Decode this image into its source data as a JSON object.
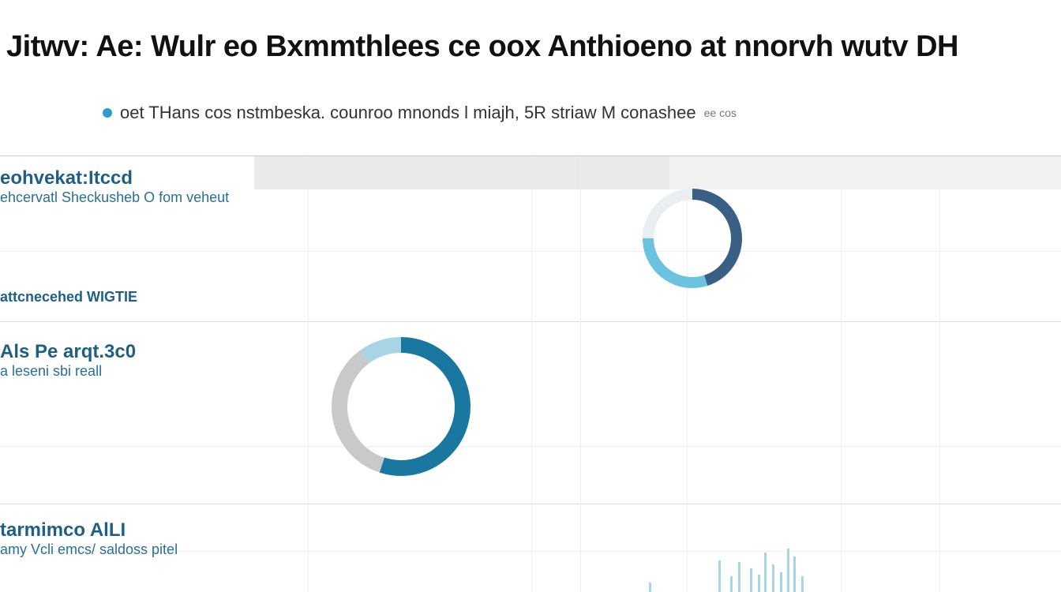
{
  "header": {
    "title": "Jitwv: Ae: Wulr eo Bxmmthlees ce oox Anthioeno at nnorvh wutv DH",
    "subtitle": "oet THans cos nstmbeska. counroo mnonds l miajh, 5R striaw M conashee",
    "subtitle_extra": "ee cos"
  },
  "sections": [
    {
      "title": "eohvekat:Itccd",
      "subtitle": "ehcervatl Sheckusheb O fom veheut",
      "footer": "attcnecehed WIGTIE"
    },
    {
      "title": "Als Pe arqt.3c0",
      "subtitle": "a  leseni sbi reall"
    },
    {
      "title": "tarmimco AlLI",
      "subtitle": "amy Vcli  emcs/ saldoss pitel"
    }
  ],
  "colors": {
    "accent": "#2aa0c8",
    "dark_blue": "#1f5f86",
    "donut_blue": "#1a78a0",
    "grid": "#e5e5e5"
  },
  "donuts": [
    {
      "segments": [
        {
          "color": "#3a5f85",
          "fraction": 0.45
        },
        {
          "color": "#6cc3df",
          "fraction": 0.3
        },
        {
          "color": "#e8eef2",
          "fraction": 0.25
        }
      ]
    },
    {
      "segments": [
        {
          "color": "#1a78a0",
          "fraction": 0.55
        },
        {
          "color": "#c9c9c9",
          "fraction": 0.35
        },
        {
          "color": "#a9d4e6",
          "fraction": 0.1
        }
      ]
    }
  ]
}
